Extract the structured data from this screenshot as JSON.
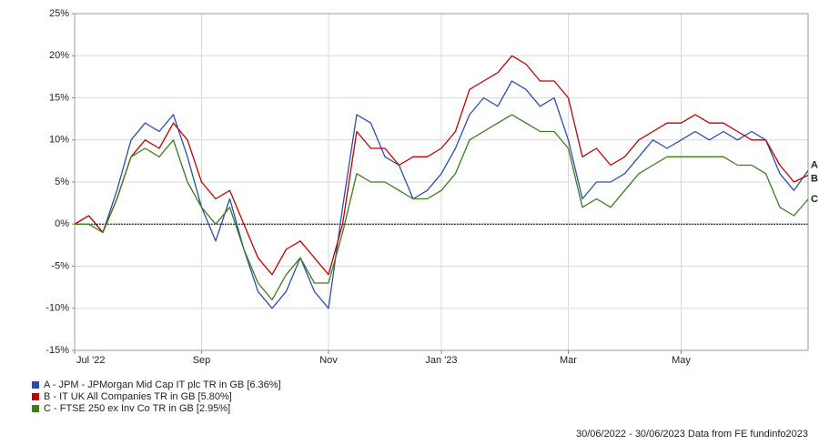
{
  "chart_data": {
    "type": "line",
    "categories": [
      "Jul '22",
      null,
      null,
      null,
      null,
      null,
      null,
      null,
      null,
      "Sep",
      null,
      null,
      null,
      null,
      null,
      null,
      null,
      null,
      "Nov",
      null,
      null,
      null,
      null,
      null,
      null,
      null,
      "Jan '23",
      null,
      null,
      null,
      null,
      null,
      null,
      null,
      null,
      "Mar",
      null,
      null,
      null,
      null,
      null,
      null,
      null,
      "May",
      null,
      null,
      null,
      null,
      null,
      null,
      null,
      null,
      null
    ],
    "series": [
      {
        "name": "A - JPM - JPMorgan Mid Cap IT plc TR in GB [6.36%]",
        "label": "A",
        "color": "#2a4fa8",
        "values": [
          0,
          1,
          -1,
          4,
          10,
          12,
          11,
          13,
          8,
          2,
          -2,
          3,
          -3,
          -8,
          -10,
          -8,
          -4,
          -8,
          -10,
          2,
          13,
          12,
          8,
          7,
          3,
          4,
          6,
          9,
          13,
          15,
          14,
          17,
          16,
          14,
          15,
          10,
          3,
          5,
          5,
          6,
          8,
          10,
          9,
          10,
          11,
          10,
          11,
          10,
          11,
          10,
          6,
          4,
          6.36
        ]
      },
      {
        "name": "B - IT UK All Companies TR in GB [5.80%]",
        "label": "B",
        "color": "#c00000",
        "values": [
          0,
          1,
          -1,
          3,
          8,
          10,
          9,
          12,
          10,
          5,
          3,
          4,
          0,
          -4,
          -6,
          -3,
          -2,
          -4,
          -6,
          0,
          11,
          9,
          9,
          7,
          8,
          8,
          9,
          11,
          16,
          17,
          18,
          20,
          19,
          17,
          17,
          15,
          8,
          9,
          7,
          8,
          10,
          11,
          12,
          12,
          13,
          12,
          12,
          11,
          10,
          10,
          7,
          5,
          5.8
        ]
      },
      {
        "name": "C - FTSE 250 ex Inv Co TR in GB [2.95%]",
        "label": "C",
        "color": "#3a7d1a",
        "values": [
          0,
          0,
          -1,
          3,
          8,
          9,
          8,
          10,
          5,
          2,
          0,
          2,
          -3,
          -7,
          -9,
          -6,
          -4,
          -7,
          -7,
          -1,
          6,
          5,
          5,
          4,
          3,
          3,
          4,
          6,
          10,
          11,
          12,
          13,
          12,
          11,
          11,
          9,
          2,
          3,
          2,
          4,
          6,
          7,
          8,
          8,
          8,
          8,
          8,
          7,
          7,
          6,
          2,
          1,
          2.95
        ]
      }
    ],
    "ylim": [
      -15,
      25
    ],
    "yticks": [
      {
        "value": -15,
        "label": "-15%"
      },
      {
        "value": -10,
        "label": "-10%"
      },
      {
        "value": -5,
        "label": "-5%"
      },
      {
        "value": 0,
        "label": "0%"
      },
      {
        "value": 5,
        "label": "5%"
      },
      {
        "value": 10,
        "label": "10%"
      },
      {
        "value": 15,
        "label": "15%"
      },
      {
        "value": 20,
        "label": "20%"
      },
      {
        "value": 25,
        "label": "25%"
      }
    ],
    "grid": true,
    "footer": "30/06/2022 - 30/06/2023 Data from FE fundinfo2023"
  }
}
